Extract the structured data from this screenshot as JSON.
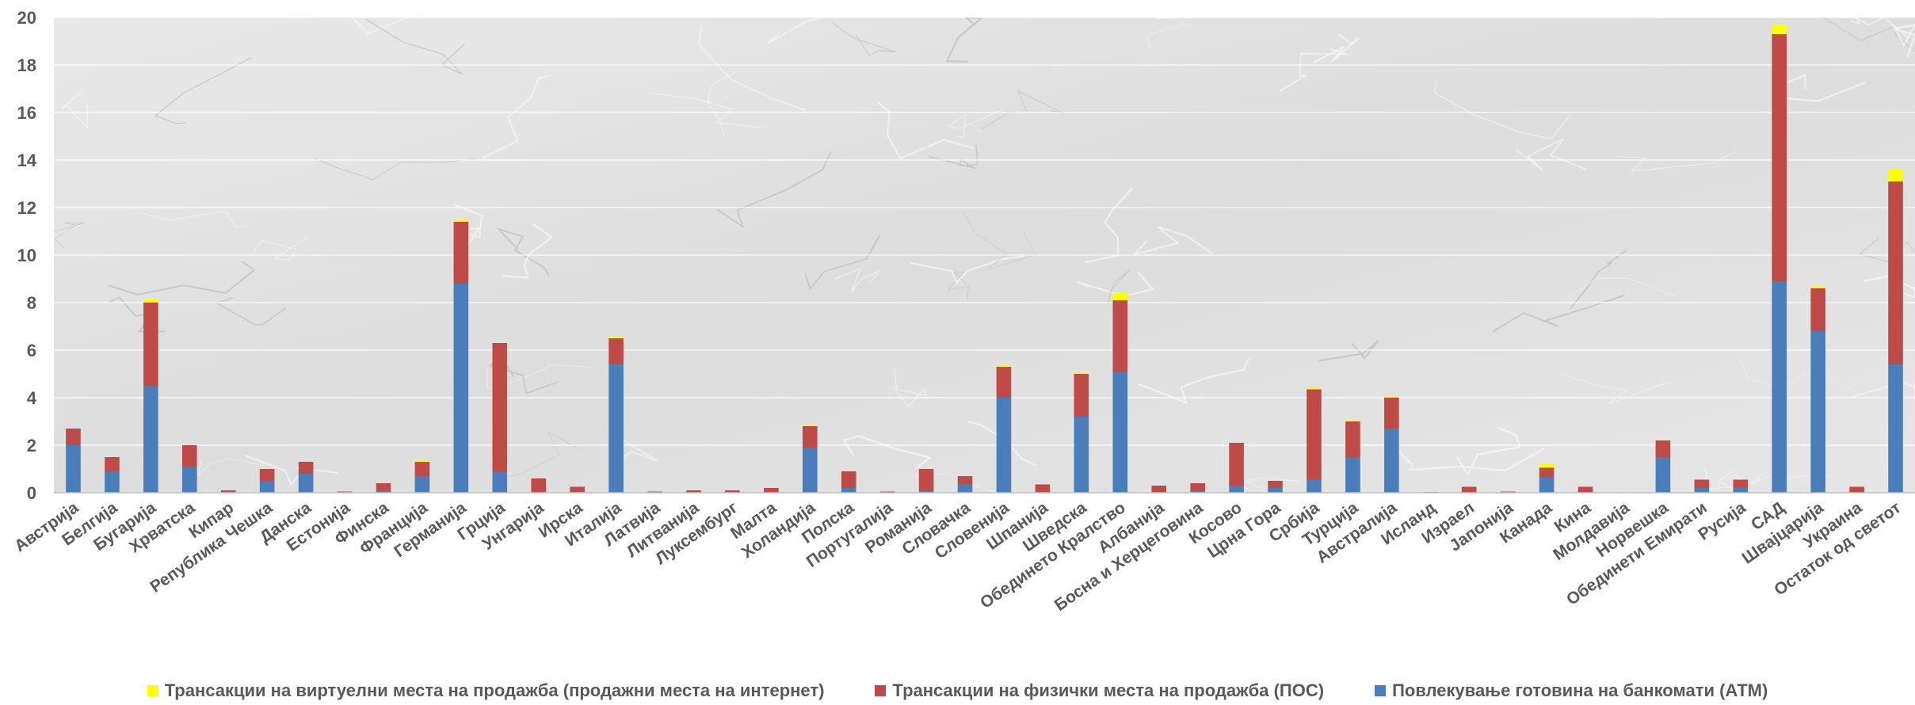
{
  "chart_data": {
    "type": "bar",
    "stacked": true,
    "title": "",
    "xlabel": "",
    "ylabel": "",
    "ylim": [
      0,
      20
    ],
    "yticks": [
      0,
      2,
      4,
      6,
      8,
      10,
      12,
      14,
      16,
      18,
      20
    ],
    "grid": true,
    "legend_position": "bottom",
    "categories": [
      "Австрија",
      "Белгија",
      "Бугарија",
      "Хрватска",
      "Кипар",
      "Република Чешка",
      "Данска",
      "Естонија",
      "Финска",
      "Франција",
      "Германија",
      "Грција",
      "Унгарија",
      "Ирска",
      "Италија",
      "Латвија",
      "Литванија",
      "Луксембург",
      "Малта",
      "Холандија",
      "Полска",
      "Португалија",
      "Романија",
      "Словачка",
      "Словенија",
      "Шпанија",
      "Шведска",
      "Обединето Кралство",
      "Албанија",
      "Босна и Херцеговина",
      "Косово",
      "Црна Гора",
      "Србија",
      "Турција",
      "Австралија",
      "Исланд",
      "Израел",
      "Јапонија",
      "Канада",
      "Кина",
      "Молдавија",
      "Норвешка",
      "Обединети Емирати",
      "Русија",
      "САД",
      "Швајцарија",
      "Украина",
      "Остаток од светот"
    ],
    "series": [
      {
        "name": "Повлекување готовина на банкомати (АТМ)",
        "color": "#4a7ebb",
        "values": [
          2.0,
          0.9,
          4.5,
          1.1,
          0.0,
          0.5,
          0.8,
          0.0,
          0.1,
          0.7,
          8.8,
          0.9,
          0.0,
          0.0,
          5.4,
          0.0,
          0.0,
          0.0,
          0.0,
          1.9,
          0.2,
          0.0,
          0.1,
          0.35,
          4.0,
          0.0,
          3.2,
          5.1,
          0.0,
          0.1,
          0.3,
          0.2,
          0.55,
          1.5,
          2.7,
          0.0,
          0.0,
          0.0,
          0.65,
          0.0,
          0.0,
          1.5,
          0.2,
          0.2,
          8.9,
          6.8,
          0.0,
          5.4
        ]
      },
      {
        "name": "Трансакции на физички места на продажба (ПОС)",
        "color": "#be4b48",
        "values": [
          0.7,
          0.6,
          3.5,
          0.9,
          0.1,
          0.5,
          0.5,
          0.05,
          0.3,
          0.6,
          2.6,
          5.4,
          0.6,
          0.25,
          1.1,
          0.05,
          0.1,
          0.1,
          0.2,
          0.9,
          0.7,
          0.05,
          0.9,
          0.35,
          1.3,
          0.35,
          1.8,
          3.0,
          0.3,
          0.3,
          1.8,
          0.3,
          3.8,
          1.5,
          1.3,
          0.03,
          0.25,
          0.05,
          0.4,
          0.25,
          0.0,
          0.7,
          0.35,
          0.35,
          10.4,
          1.8,
          0.25,
          7.7
        ]
      },
      {
        "name": "Трансакции на виртуелни места на продажба (продажни места на интернет)",
        "color": "#ffff00",
        "values": [
          0.0,
          0.0,
          0.15,
          0.0,
          0.0,
          0.0,
          0.0,
          0.0,
          0.0,
          0.05,
          0.1,
          0.0,
          0.0,
          0.0,
          0.05,
          0.0,
          0.0,
          0.0,
          0.0,
          0.05,
          0.0,
          0.0,
          0.0,
          0.0,
          0.05,
          0.0,
          0.05,
          0.3,
          0.0,
          0.0,
          0.0,
          0.0,
          0.05,
          0.05,
          0.05,
          0.0,
          0.0,
          0.0,
          0.15,
          0.0,
          0.0,
          0.0,
          0.0,
          0.0,
          0.4,
          0.1,
          0.0,
          0.5
        ]
      }
    ]
  },
  "legend": {
    "items": [
      {
        "label": "Трансакции на виртуелни места на продажба (продажни места на интернет)",
        "color": "#ffff00"
      },
      {
        "label": "Трансакции на физички места на продажба (ПОС)",
        "color": "#be4b48"
      },
      {
        "label": "Повлекување готовина на банкомати (АТМ)",
        "color": "#4a7ebb"
      }
    ]
  }
}
